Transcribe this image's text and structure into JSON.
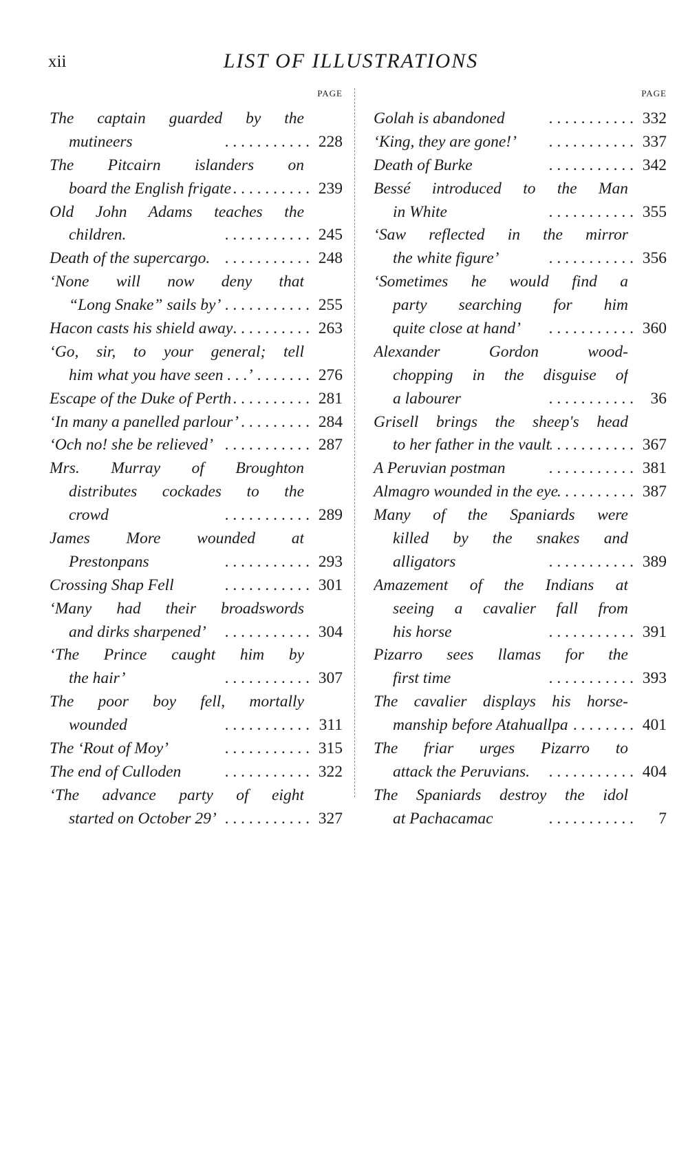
{
  "header": {
    "folio": "xii",
    "title": "LIST OF ILLUSTRATIONS"
  },
  "column_label": "PAGE",
  "leader": ".    .    .    .    .    .    .    .    .    .    .",
  "entries": {
    "left": [
      {
        "lines": [
          "The captain guarded by the",
          "mutineers"
        ],
        "page": "228"
      },
      {
        "lines": [
          "The Pitcairn islanders on",
          "board the English frigate"
        ],
        "page": "239"
      },
      {
        "lines": [
          "Old John Adams teaches the",
          "children."
        ],
        "page": "245"
      },
      {
        "lines": [
          "Death of the supercargo."
        ],
        "page": "248"
      },
      {
        "lines": [
          "‘None will now deny that",
          "“Long Snake” sails by’"
        ],
        "page": "255"
      },
      {
        "lines": [
          "Hacon casts his shield away"
        ],
        "page": "263"
      },
      {
        "lines": [
          "‘Go, sir, to your general; tell",
          "him what you have seen . . .’"
        ],
        "page": "276"
      },
      {
        "lines": [
          "Escape of the Duke of Perth"
        ],
        "page": "281"
      },
      {
        "lines": [
          "‘In many a panelled parlour’"
        ],
        "page": "284"
      },
      {
        "lines": [
          "‘Och no! she be relieved’"
        ],
        "page": "287"
      },
      {
        "lines": [
          "Mrs. Murray of Broughton",
          "distributes cockades to the",
          "crowd"
        ],
        "page": "289"
      },
      {
        "lines": [
          "James More wounded at",
          "Prestonpans"
        ],
        "page": "293"
      },
      {
        "lines": [
          "Crossing Shap Fell"
        ],
        "page": "301"
      },
      {
        "lines": [
          "‘Many had their broadswords",
          "and dirks sharpened’"
        ],
        "page": "304"
      },
      {
        "lines": [
          "‘The Prince caught him by",
          "the hair’"
        ],
        "page": "307"
      },
      {
        "lines": [
          "The poor boy fell, mortally",
          "wounded"
        ],
        "page": "311"
      },
      {
        "lines": [
          "The ‘Rout of Moy’"
        ],
        "page": "315"
      },
      {
        "lines": [
          "The end of Culloden"
        ],
        "page": "322"
      },
      {
        "lines": [
          "‘The advance party of eight",
          "started on October 29’"
        ],
        "page": "327"
      }
    ],
    "right": [
      {
        "lines": [
          "Golah is abandoned"
        ],
        "page": "332"
      },
      {
        "lines": [
          "‘King, they are gone!’"
        ],
        "page": "337"
      },
      {
        "lines": [
          "Death of Burke"
        ],
        "page": "342"
      },
      {
        "lines": [
          "Bessé introduced to the Man",
          "in White"
        ],
        "page": "355"
      },
      {
        "lines": [
          "‘Saw reflected in the mirror",
          "the white figure’"
        ],
        "page": "356"
      },
      {
        "lines": [
          "‘Sometimes he would find a",
          "party searching for him",
          "quite close at hand’"
        ],
        "page": "360"
      },
      {
        "lines": [
          "Alexander Gordon wood-",
          "chopping in the disguise of",
          "a labourer"
        ],
        "page": "36"
      },
      {
        "lines": [
          "Grisell brings the sheep's head",
          "to her father in the vault"
        ],
        "page": "367"
      },
      {
        "lines": [
          "A Peruvian postman"
        ],
        "page": "381"
      },
      {
        "lines": [
          "Almagro wounded in the eye"
        ],
        "page": "387"
      },
      {
        "lines": [
          "Many of the Spaniards were",
          "killed by the snakes and",
          "alligators"
        ],
        "page": "389"
      },
      {
        "lines": [
          "Amazement of the Indians at",
          "seeing a cavalier fall from",
          "his horse"
        ],
        "page": "391"
      },
      {
        "lines": [
          "Pizarro sees llamas for the",
          "first time"
        ],
        "page": "393"
      },
      {
        "lines": [
          "The cavalier displays his horse-",
          "manship before Atahuallpa"
        ],
        "page": "401"
      },
      {
        "lines": [
          "The friar urges Pizarro to",
          "attack the Peruvians."
        ],
        "page": "404"
      },
      {
        "lines": [
          "The Spaniards destroy the idol",
          "at Pachacamac"
        ],
        "page": "7"
      }
    ]
  }
}
